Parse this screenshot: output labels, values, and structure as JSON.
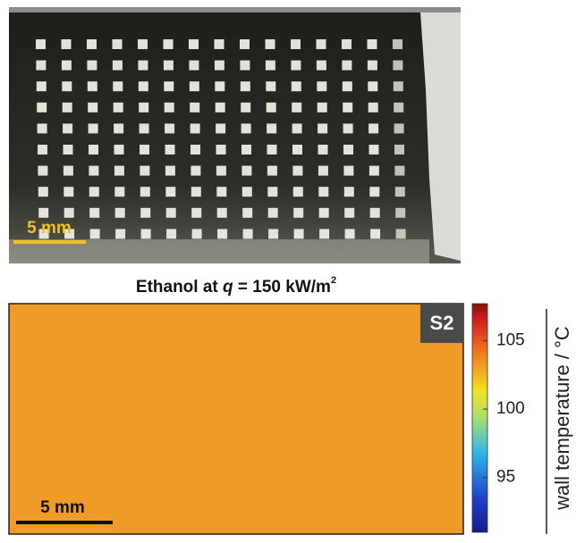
{
  "photo": {
    "scale_bar": "5 mm"
  },
  "map": {
    "title": {
      "prefix": "Ethanol at ",
      "variable": "q",
      "suffix": " = 150 kW/m",
      "superscript": "2"
    },
    "sample": "S2",
    "scale_bar": "5 mm"
  },
  "colorbar": {
    "label": "wall temperature / °C",
    "lim": [
      91,
      107.7
    ],
    "ticks": [
      95,
      100,
      105
    ]
  }
}
